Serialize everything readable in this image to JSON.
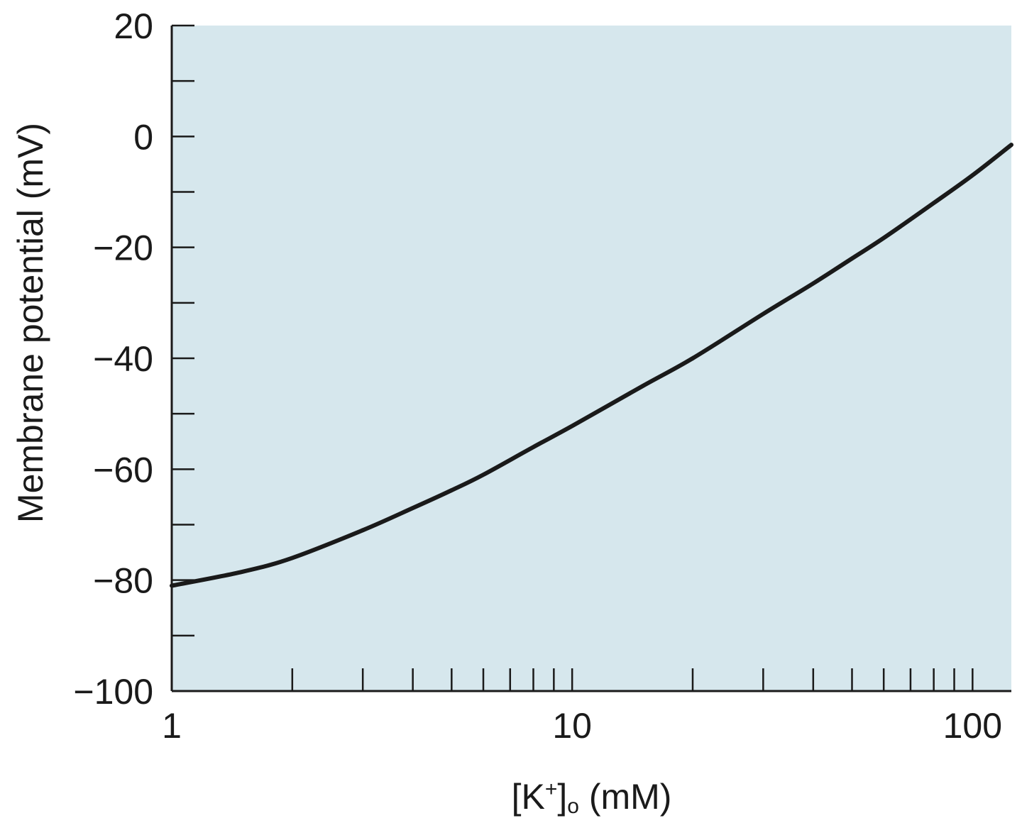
{
  "chart_data": {
    "type": "line",
    "title": "",
    "xlabel": {
      "base": "[K",
      "sup": "+",
      "close": "]",
      "sub": "o",
      "unit": " (mM)"
    },
    "ylabel": "Membrane potential (mV)",
    "x_scale": "log",
    "xlim": [
      1,
      125
    ],
    "ylim": [
      -100,
      20
    ],
    "x_tick_labels": [
      {
        "value": 1,
        "label": "1"
      },
      {
        "value": 10,
        "label": "10"
      },
      {
        "value": 100,
        "label": "100"
      }
    ],
    "x_minor_ticks": [
      2,
      3,
      4,
      5,
      6,
      7,
      8,
      9,
      20,
      30,
      40,
      50,
      60,
      70,
      80,
      90
    ],
    "y_tick_labels": [
      {
        "value": 20,
        "label": "20"
      },
      {
        "value": 0,
        "label": "0"
      },
      {
        "value": -20,
        "label": "−20"
      },
      {
        "value": -40,
        "label": "−40"
      },
      {
        "value": -60,
        "label": "−60"
      },
      {
        "value": -80,
        "label": "−80"
      },
      {
        "value": -100,
        "label": "−100"
      }
    ],
    "y_minor_ticks": [
      10,
      -10,
      -30,
      -50,
      -70,
      -90
    ],
    "grid": false,
    "background_color": "#d6e7ed",
    "line_color": "#1a1a1a",
    "series": [
      {
        "x": [
          1,
          1.5,
          2,
          3,
          4,
          5,
          6,
          8,
          10,
          15,
          20,
          30,
          40,
          50,
          60,
          80,
          100,
          125
        ],
        "y": [
          -81,
          -78.5,
          -76,
          -71,
          -67,
          -63.8,
          -61,
          -56,
          -52.2,
          -45,
          -40,
          -32,
          -26.5,
          -22,
          -18.3,
          -12,
          -7,
          -1.5
        ]
      }
    ]
  }
}
